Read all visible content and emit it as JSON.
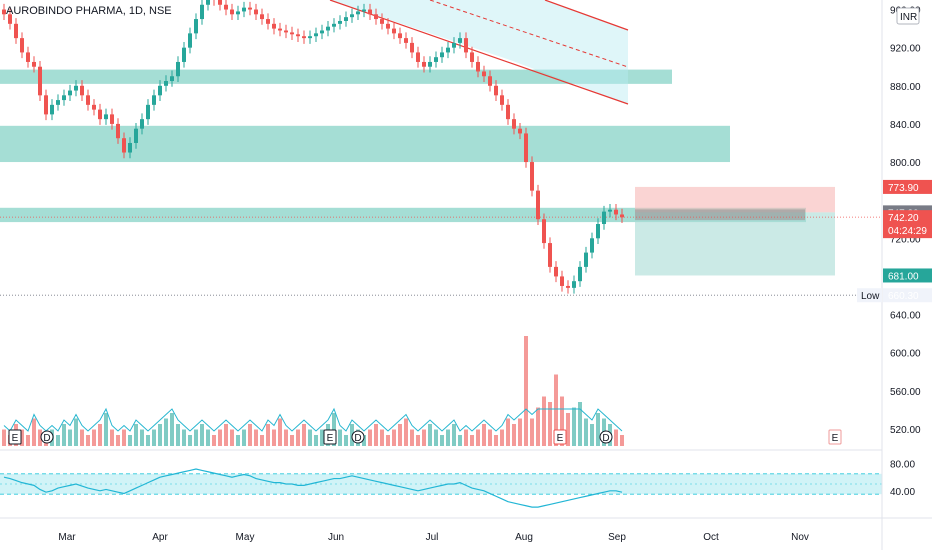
{
  "header": {
    "title": "AUROBINDO PHARMA, 1D, NSE",
    "currency": "INR"
  },
  "colors": {
    "up": "#26a69a",
    "down": "#ef5350",
    "vol_up": "#80cbc4",
    "vol_down": "#f49a98",
    "zone": "#8fd6cb",
    "channel": "#e53935",
    "stop": "#ef5350",
    "target": "#26a69a",
    "current": "#ef5350",
    "rsi": "#22b6d5",
    "vol_ma": "#26b6d0"
  },
  "chart_data": {
    "type": "candlestick",
    "price_axis": {
      "min": 500,
      "max": 970,
      "ticks": [
        960,
        920,
        880,
        840,
        800,
        720,
        640,
        600,
        560,
        520
      ]
    },
    "rsi_axis": {
      "min": 0,
      "max": 100,
      "ticks": [
        80,
        40
      ]
    },
    "months": [
      "Mar",
      "Apr",
      "May",
      "Jun",
      "Jul",
      "Aug",
      "Sep",
      "Oct",
      "Nov"
    ],
    "price_tags": [
      {
        "label": "773.90",
        "value": 773.9,
        "color": "#ef5350"
      },
      {
        "label": "747.20",
        "value": 747.2,
        "color": "#787b86"
      },
      {
        "label": "742.20",
        "sub": "04:24:29",
        "value": 742.2,
        "color": "#ef5350"
      },
      {
        "label": "681.00",
        "value": 681.0,
        "color": "#26a69a"
      },
      {
        "label": "660.30",
        "value": 660.3,
        "color": "#f0f3fa",
        "text_color": "#131722",
        "prefix": "Low"
      }
    ],
    "support_zones": [
      {
        "from": 882,
        "to": 897
      },
      {
        "from": 800,
        "to": 838
      },
      {
        "from": 737,
        "to": 752
      }
    ],
    "position": {
      "entry": 747.2,
      "stop": 773.9,
      "target": 681.0,
      "current": 742.2,
      "low": 660.3
    },
    "events": [
      {
        "label": "E",
        "kind": "earnings",
        "past": true
      },
      {
        "label": "D",
        "kind": "dividend",
        "past": true
      },
      {
        "label": "E",
        "kind": "earnings",
        "past": true
      },
      {
        "label": "D",
        "kind": "dividend",
        "past": true
      },
      {
        "label": "E",
        "kind": "earnings",
        "past": true,
        "negative": true
      },
      {
        "label": "D",
        "kind": "dividend",
        "past": true
      },
      {
        "label": "E",
        "kind": "earnings",
        "past": false
      }
    ],
    "series": [
      {
        "name": "price",
        "note": "daily closes, Feb–Sep",
        "close": [
          955,
          945,
          930,
          915,
          905,
          900,
          870,
          850,
          860,
          865,
          870,
          875,
          880,
          870,
          860,
          855,
          845,
          850,
          840,
          825,
          810,
          820,
          835,
          845,
          860,
          870,
          880,
          885,
          890,
          905,
          920,
          935,
          950,
          965,
          975,
          970,
          965,
          960,
          955,
          958,
          962,
          960,
          955,
          950,
          945,
          940,
          938,
          936,
          934,
          932,
          930,
          932,
          935,
          938,
          942,
          945,
          948,
          952,
          955,
          958,
          960,
          955,
          950,
          945,
          940,
          935,
          930,
          925,
          915,
          905,
          900,
          905,
          910,
          915,
          920,
          925,
          930,
          915,
          905,
          895,
          890,
          880,
          870,
          860,
          845,
          835,
          830,
          800,
          770,
          740,
          715,
          690,
          680,
          670,
          668,
          675,
          690,
          705,
          720,
          735,
          748,
          750,
          745,
          742
        ],
        "open": [
          960,
          955,
          945,
          930,
          915,
          905,
          900,
          870,
          850,
          860,
          865,
          870,
          875,
          880,
          870,
          860,
          855,
          845,
          850,
          840,
          825,
          810,
          820,
          835,
          845,
          860,
          870,
          880,
          885,
          890,
          905,
          920,
          935,
          950,
          965,
          975,
          970,
          965,
          960,
          955,
          958,
          962,
          960,
          955,
          950,
          945,
          940,
          938,
          936,
          934,
          932,
          930,
          932,
          935,
          938,
          942,
          945,
          948,
          952,
          955,
          958,
          960,
          955,
          950,
          945,
          940,
          935,
          930,
          925,
          915,
          905,
          900,
          905,
          910,
          915,
          920,
          925,
          930,
          915,
          905,
          895,
          890,
          880,
          870,
          860,
          845,
          835,
          830,
          800,
          770,
          740,
          715,
          690,
          680,
          670,
          668,
          675,
          690,
          705,
          720,
          735,
          748,
          750,
          745
        ]
      },
      {
        "name": "volume",
        "values": [
          3,
          2,
          4,
          3,
          2,
          5,
          3,
          2,
          3,
          2,
          4,
          3,
          5,
          3,
          2,
          3,
          4,
          6,
          3,
          2,
          3,
          2,
          4,
          3,
          2,
          3,
          4,
          5,
          6,
          4,
          3,
          2,
          3,
          4,
          3,
          2,
          3,
          4,
          3,
          2,
          3,
          4,
          3,
          2,
          4,
          3,
          5,
          3,
          2,
          3,
          4,
          3,
          2,
          3,
          4,
          6,
          3,
          2,
          4,
          3,
          2,
          3,
          4,
          3,
          2,
          3,
          4,
          5,
          3,
          2,
          3,
          4,
          3,
          2,
          3,
          4,
          2,
          3,
          2,
          3,
          4,
          3,
          2,
          3,
          5,
          4,
          5,
          20,
          5,
          7,
          9,
          8,
          13,
          9,
          6,
          7,
          8,
          5,
          4,
          6,
          5,
          4,
          3,
          2
        ]
      },
      {
        "name": "rsi",
        "values": [
          60,
          58,
          55,
          52,
          50,
          48,
          42,
          38,
          40,
          44,
          46,
          48,
          50,
          47,
          44,
          42,
          40,
          42,
          40,
          38,
          36,
          40,
          44,
          48,
          52,
          56,
          60,
          62,
          64,
          66,
          68,
          70,
          72,
          70,
          68,
          66,
          64,
          62,
          60,
          62,
          64,
          62,
          58,
          56,
          54,
          52,
          52,
          50,
          50,
          48,
          48,
          50,
          52,
          54,
          56,
          58,
          58,
          60,
          62,
          60,
          58,
          56,
          54,
          52,
          50,
          48,
          46,
          44,
          42,
          40,
          42,
          44,
          46,
          48,
          50,
          50,
          52,
          48,
          44,
          42,
          40,
          36,
          32,
          28,
          24,
          22,
          20,
          18,
          16,
          16,
          18,
          20,
          22,
          24,
          26,
          28,
          30,
          32,
          34,
          36,
          38,
          40,
          40,
          38
        ]
      }
    ]
  }
}
